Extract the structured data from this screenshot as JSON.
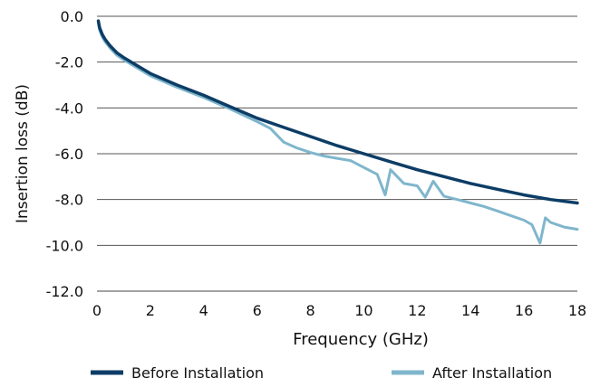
{
  "chart_data": {
    "type": "line",
    "title": "",
    "xlabel": "Frequency (GHz)",
    "ylabel": "Insertion loss (dB)",
    "xlim": [
      0,
      18
    ],
    "ylim": [
      -12,
      0
    ],
    "x_ticks": [
      0,
      2,
      4,
      6,
      8,
      10,
      12,
      14,
      16,
      18
    ],
    "y_ticks": [
      0,
      -2,
      -4,
      -6,
      -8,
      -10,
      -12
    ],
    "x_tick_labels": [
      "0",
      "2",
      "4",
      "6",
      "8",
      "10",
      "12",
      "14",
      "16",
      "18"
    ],
    "y_tick_labels": [
      "0.0",
      "-2.0",
      "-4.0",
      "-6.0",
      "-8.0",
      "-10.0",
      "-12.0"
    ],
    "grid": "horizontal",
    "legend_position": "bottom",
    "series": [
      {
        "name": "Before Installation",
        "color": "#0d3d66",
        "x": [
          0.05,
          0.1,
          0.2,
          0.3,
          0.5,
          0.75,
          1.0,
          1.5,
          2.0,
          3.0,
          4.0,
          5.0,
          6.0,
          7.0,
          8.0,
          9.0,
          10.0,
          11.0,
          12.0,
          13.0,
          14.0,
          15.0,
          16.0,
          17.0,
          18.0
        ],
        "y": [
          -0.2,
          -0.5,
          -0.8,
          -1.0,
          -1.3,
          -1.6,
          -1.8,
          -2.15,
          -2.5,
          -3.0,
          -3.45,
          -3.95,
          -4.45,
          -4.85,
          -5.25,
          -5.65,
          -6.0,
          -6.35,
          -6.7,
          -7.0,
          -7.3,
          -7.55,
          -7.8,
          -8.0,
          -8.15
        ]
      },
      {
        "name": "After Installation",
        "color": "#7fb6cc",
        "x": [
          0.05,
          0.1,
          0.2,
          0.3,
          0.5,
          0.75,
          1.0,
          1.5,
          2.0,
          3.0,
          4.0,
          5.0,
          6.0,
          6.5,
          7.0,
          7.5,
          8.0,
          8.5,
          9.0,
          9.5,
          10.0,
          10.5,
          10.8,
          11.0,
          11.5,
          12.0,
          12.3,
          12.6,
          13.0,
          13.5,
          14.0,
          14.5,
          15.0,
          15.5,
          16.0,
          16.3,
          16.6,
          16.8,
          17.0,
          17.5,
          18.0
        ],
        "y": [
          -0.3,
          -0.6,
          -0.9,
          -1.1,
          -1.4,
          -1.7,
          -1.9,
          -2.25,
          -2.6,
          -3.1,
          -3.55,
          -4.05,
          -4.6,
          -4.9,
          -5.5,
          -5.75,
          -5.95,
          -6.1,
          -6.2,
          -6.3,
          -6.6,
          -6.9,
          -7.8,
          -6.7,
          -7.3,
          -7.4,
          -7.9,
          -7.2,
          -7.85,
          -8.0,
          -8.15,
          -8.3,
          -8.5,
          -8.7,
          -8.9,
          -9.1,
          -9.9,
          -8.8,
          -9.0,
          -9.2,
          -9.3
        ]
      }
    ]
  }
}
